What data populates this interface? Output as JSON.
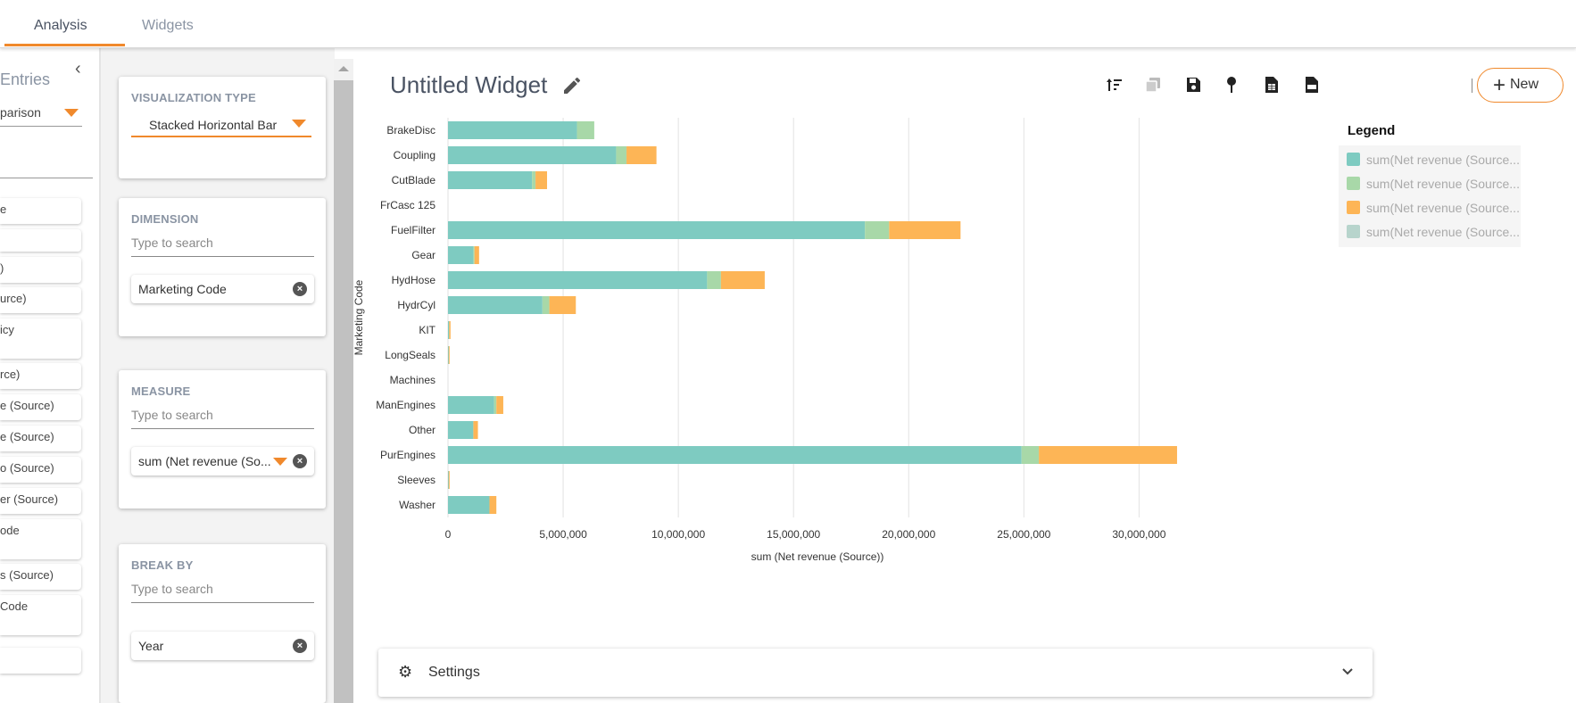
{
  "tabs": [
    {
      "label": "Analysis",
      "active": true
    },
    {
      "label": "Widgets",
      "active": false
    }
  ],
  "left_panel": {
    "title": "Entries",
    "select_value": "parison",
    "items": [
      "e",
      "",
      ")",
      "urce)",
      "icy",
      "rce)",
      "e (Source)",
      "e (Source)",
      "o (Source)",
      "er (Source)",
      "ode",
      "s (Source)",
      "Code",
      ""
    ]
  },
  "config": {
    "visualization": {
      "title": "VISUALIZATION TYPE",
      "value": "Stacked Horizontal Bar"
    },
    "dimension": {
      "title": "DIMENSION",
      "placeholder": "Type to search",
      "chip": "Marketing Code"
    },
    "measure": {
      "title": "MEASURE",
      "placeholder": "Type to search",
      "chip": "sum (Net revenue (So..."
    },
    "breakby": {
      "title": "BREAK BY",
      "placeholder": "Type to search",
      "chip": "Year"
    }
  },
  "widget": {
    "title": "Untitled Widget",
    "new_label": "New",
    "toolbar_icons": [
      "sort-icon",
      "duplicate-icon",
      "save-icon",
      "pin-icon",
      "export-excel-icon",
      "export-csv-icon"
    ],
    "settings_label": "Settings"
  },
  "colors": {
    "accent": "#f0892c",
    "series": [
      "#7ecbc1",
      "#a8d8a8",
      "#fdb556",
      "#b7d4cc"
    ]
  },
  "chart_data": {
    "type": "bar",
    "orientation": "horizontal",
    "stacked": true,
    "title": "",
    "xlabel": "sum (Net revenue (Source))",
    "ylabel": "Marketing Code",
    "xlim": [
      0,
      32000000
    ],
    "xticks": [
      0,
      5000000,
      10000000,
      15000000,
      20000000,
      25000000,
      30000000
    ],
    "xtick_labels": [
      "0",
      "5,000,000",
      "10,000,000",
      "15,000,000",
      "20,000,000",
      "25,000,000",
      "30,000,000"
    ],
    "categories": [
      "BrakeDisc",
      "Coupling",
      "CutBlade",
      "FrCasc 125",
      "FuelFilter",
      "Gear",
      "HydHose",
      "HydrCyl",
      "KIT",
      "LongSeals",
      "Machines",
      "ManEngines",
      "Other",
      "PurEngines",
      "Sleeves",
      "Washer"
    ],
    "series": [
      {
        "name": "sum(Net revenue (Source...",
        "values": [
          5600000,
          7300000,
          3650000,
          0,
          18100000,
          1100000,
          11250000,
          4100000,
          50000,
          30000,
          0,
          2000000,
          1100000,
          24900000,
          30000,
          1800000
        ]
      },
      {
        "name": "sum(Net revenue (Source...",
        "values": [
          750000,
          450000,
          150000,
          0,
          1050000,
          50000,
          600000,
          300000,
          0,
          0,
          0,
          100000,
          0,
          750000,
          0,
          0
        ]
      },
      {
        "name": "sum(Net revenue (Source...",
        "values": [
          0,
          1300000,
          500000,
          0,
          3100000,
          200000,
          1900000,
          1150000,
          60000,
          20000,
          0,
          300000,
          200000,
          6000000,
          40000,
          300000
        ]
      },
      {
        "name": "sum(Net revenue (Source...",
        "values": [
          0,
          0,
          0,
          0,
          0,
          0,
          0,
          0,
          0,
          0,
          0,
          0,
          0,
          0,
          0,
          0
        ]
      }
    ],
    "legend_title": "Legend",
    "legend_position": "right"
  }
}
